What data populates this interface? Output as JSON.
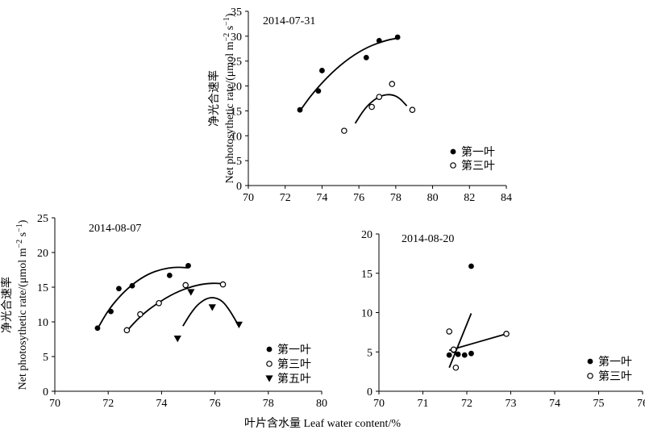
{
  "figure": {
    "xlabel": "叶片含水量 Leaf water content/%",
    "ylabel_main": "Net photosythetic rate/(μmol m",
    "ylabel_sup1": "−2",
    "ylabel_mid": " s",
    "ylabel_sup2": "−1",
    "ylabel_end": ")",
    "ylabel_cn": "净光合速率"
  },
  "chart_data": [
    {
      "type": "scatter",
      "title": "2014-07-31",
      "xlim": [
        70,
        84
      ],
      "ylim": [
        0,
        35
      ],
      "x_ticks": [
        70,
        72,
        74,
        76,
        78,
        80,
        82,
        84
      ],
      "y_ticks": [
        0,
        5,
        10,
        15,
        20,
        25,
        30,
        35
      ],
      "legend_position": "bottom-right",
      "series": [
        {
          "name": "第一叶",
          "marker": "filled-circle",
          "x": [
            72.8,
            73.8,
            74.0,
            76.4,
            77.1,
            78.1
          ],
          "y": [
            15.2,
            19.0,
            23.1,
            25.7,
            29.1,
            29.8
          ],
          "fit": [
            [
              72.8,
              15.0
            ],
            [
              73.5,
              18.6
            ],
            [
              74.5,
              22.6
            ],
            [
              75.5,
              25.7
            ],
            [
              76.5,
              27.9
            ],
            [
              77.5,
              29.2
            ],
            [
              78.1,
              29.6
            ]
          ]
        },
        {
          "name": "第三叶",
          "marker": "open-circle",
          "x": [
            75.2,
            76.7,
            77.1,
            77.8,
            78.9
          ],
          "y": [
            11.0,
            15.8,
            17.8,
            20.4,
            15.2
          ],
          "fit": [
            [
              75.8,
              12.5
            ],
            [
              76.3,
              15.4
            ],
            [
              76.8,
              17.2
            ],
            [
              77.3,
              18.2
            ],
            [
              77.8,
              18.3
            ],
            [
              78.2,
              17.6
            ],
            [
              78.6,
              16.0
            ]
          ]
        }
      ]
    },
    {
      "type": "scatter",
      "title": "2014-08-07",
      "xlim": [
        70,
        80
      ],
      "ylim": [
        0,
        25
      ],
      "x_ticks": [
        70,
        72,
        74,
        76,
        78,
        80
      ],
      "y_ticks": [
        0,
        5,
        10,
        15,
        20,
        25
      ],
      "legend_position": "bottom-right",
      "series": [
        {
          "name": "第一叶",
          "marker": "filled-circle",
          "x": [
            71.6,
            72.1,
            72.4,
            72.9,
            74.3,
            75.0
          ],
          "y": [
            9.1,
            11.5,
            14.8,
            15.2,
            16.7,
            18.1
          ],
          "fit": [
            [
              71.6,
              9.0
            ],
            [
              72.0,
              11.7
            ],
            [
              72.5,
              14.0
            ],
            [
              73.0,
              15.7
            ],
            [
              73.5,
              16.9
            ],
            [
              74.0,
              17.6
            ],
            [
              74.5,
              17.9
            ],
            [
              75.0,
              17.8
            ]
          ]
        },
        {
          "name": "第三叶",
          "marker": "open-circle",
          "x": [
            72.7,
            73.2,
            73.9,
            74.9,
            76.3
          ],
          "y": [
            8.8,
            11.1,
            12.7,
            15.3,
            15.4
          ],
          "fit": [
            [
              72.7,
              8.7
            ],
            [
              73.2,
              10.8
            ],
            [
              73.8,
              12.6
            ],
            [
              74.5,
              14.2
            ],
            [
              75.2,
              15.2
            ],
            [
              75.8,
              15.6
            ],
            [
              76.3,
              15.5
            ]
          ]
        },
        {
          "name": "第五叶",
          "marker": "filled-triangle-down",
          "x": [
            74.6,
            75.1,
            75.9,
            76.9
          ],
          "y": [
            7.6,
            14.3,
            12.1,
            9.6
          ],
          "fit": [
            [
              74.8,
              9.4
            ],
            [
              75.1,
              11.3
            ],
            [
              75.4,
              12.7
            ],
            [
              75.8,
              13.6
            ],
            [
              76.2,
              13.3
            ],
            [
              76.5,
              12.0
            ],
            [
              76.9,
              9.4
            ]
          ]
        }
      ]
    },
    {
      "type": "scatter",
      "title": "2014-08-20",
      "xlim": [
        70,
        76
      ],
      "ylim": [
        0,
        20
      ],
      "x_ticks": [
        70,
        71,
        72,
        73,
        74,
        75,
        76
      ],
      "y_ticks": [
        0,
        5,
        10,
        15,
        20
      ],
      "legend_position": "bottom-right",
      "series": [
        {
          "name": "第一叶",
          "marker": "filled-circle",
          "x": [
            71.6,
            71.7,
            71.8,
            71.95,
            72.1,
            72.1
          ],
          "y": [
            4.6,
            5.2,
            4.7,
            4.6,
            4.8,
            15.9
          ],
          "fit": [
            [
              71.6,
              3.0
            ],
            [
              72.1,
              9.9
            ]
          ]
        },
        {
          "name": "第三叶",
          "marker": "open-circle",
          "x": [
            71.6,
            71.7,
            71.75,
            72.9
          ],
          "y": [
            7.6,
            5.3,
            3.0,
            7.3
          ],
          "fit": [
            [
              71.6,
              5.2
            ],
            [
              72.9,
              7.3
            ]
          ]
        }
      ]
    }
  ]
}
